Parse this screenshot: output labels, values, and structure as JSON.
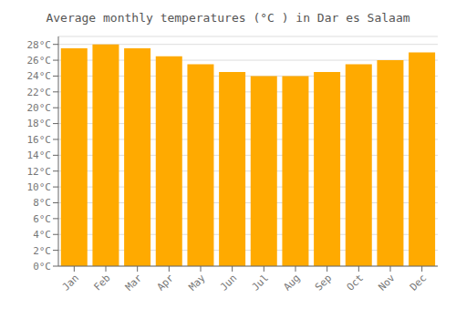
{
  "chart_data": {
    "type": "bar",
    "title": "Average monthly temperatures (°C ) in Dar es Salaam",
    "categories": [
      "Jan",
      "Feb",
      "Mar",
      "Apr",
      "May",
      "Jun",
      "Jul",
      "Aug",
      "Sep",
      "Oct",
      "Nov",
      "Dec"
    ],
    "values": [
      27.5,
      28.0,
      27.5,
      26.5,
      25.5,
      24.5,
      24.0,
      24.0,
      24.5,
      25.5,
      26.0,
      27.0
    ],
    "color": "#FFAA00",
    "ylim": [
      0,
      29
    ],
    "yticks": [
      {
        "value": 0,
        "label": "0°C"
      },
      {
        "value": 2,
        "label": "2°C"
      },
      {
        "value": 4,
        "label": "4°C"
      },
      {
        "value": 6,
        "label": "6°C"
      },
      {
        "value": 8,
        "label": "8°C"
      },
      {
        "value": 10,
        "label": "10°C"
      },
      {
        "value": 12,
        "label": "12°C"
      },
      {
        "value": 14,
        "label": "14°C"
      },
      {
        "value": 16,
        "label": "16°C"
      },
      {
        "value": 18,
        "label": "18°C"
      },
      {
        "value": 20,
        "label": "20°C"
      },
      {
        "value": 22,
        "label": "22°C"
      },
      {
        "value": 24,
        "label": "24°C"
      },
      {
        "value": 26,
        "label": "26°C"
      },
      {
        "value": 28,
        "label": "28°C"
      }
    ],
    "grid": true
  }
}
